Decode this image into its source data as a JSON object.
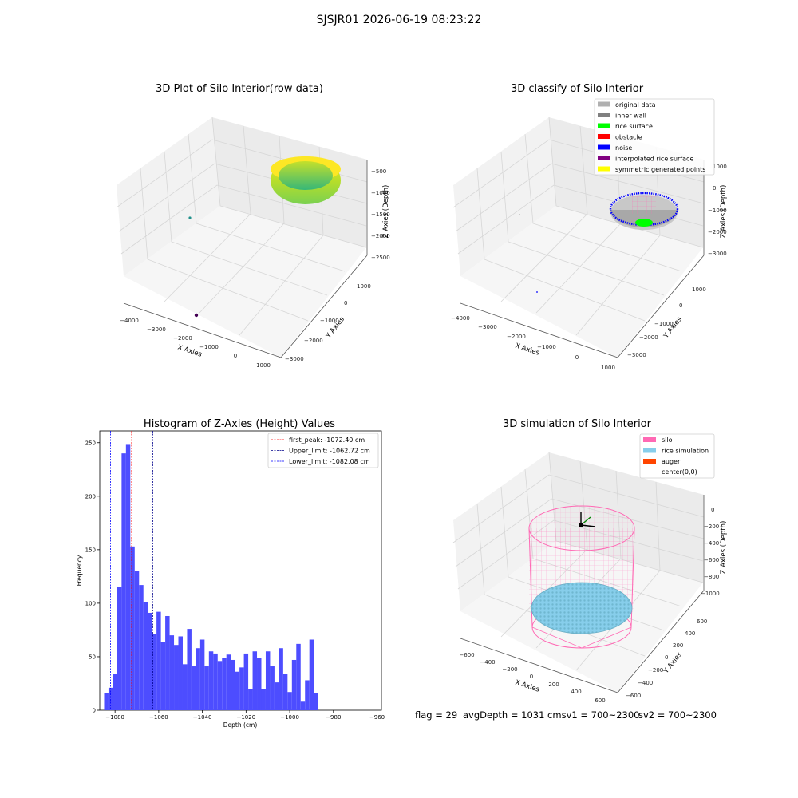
{
  "suptitle": "SJSJR01 2026-06-19 08:23:22",
  "footer": {
    "flag": "flag = 29",
    "avg": "avgDepth = 1031 cmsv1 = 700~2300",
    "sv2": "sv2 = 700~2300"
  },
  "chart_data": [
    {
      "type": "scatter",
      "title": "3D Plot of Silo Interior(row data)",
      "xlabel": "X Axies",
      "ylabel": "Y Axies",
      "zlabel": "Z Axies (Depth)",
      "x_ticks": [
        "−4000",
        "−3000",
        "−2000",
        "−1000",
        "0",
        "1000"
      ],
      "y_ticks": [
        "1000",
        "0",
        "−1000",
        "−2000",
        "−3000"
      ],
      "z_ticks": [
        "−500",
        "−1000",
        "−1500",
        "−2000",
        "−2500"
      ],
      "colormap": [
        "#fde725",
        "#7ad151",
        "#22a884",
        "#2a788e",
        "#440154"
      ]
    },
    {
      "type": "scatter",
      "title": "3D classify of Silo Interior",
      "xlabel": "X Axies",
      "ylabel": "Y Axies",
      "zlabel": "Z Axies (Depth)",
      "x_ticks": [
        "−4000",
        "−3000",
        "−2000",
        "−1000",
        "0",
        "1000"
      ],
      "y_ticks": [
        "1000",
        "0",
        "−1000",
        "−2000",
        "−3000"
      ],
      "z_ticks": [
        "1000",
        "0",
        "−1000",
        "−2000",
        "−3000"
      ],
      "legend": [
        {
          "label": "original data",
          "color": "#b0b0b0"
        },
        {
          "label": "inner wall",
          "color": "#808080"
        },
        {
          "label": "rice surface",
          "color": "#00ff00"
        },
        {
          "label": "obstacle",
          "color": "#ff0000"
        },
        {
          "label": "noise",
          "color": "#0000ff"
        },
        {
          "label": "interpolated rice surface",
          "color": "#800080"
        },
        {
          "label": "symmetric generated points",
          "color": "#ffff00"
        }
      ],
      "legend_loc": "upper right"
    },
    {
      "type": "bar",
      "title": "Histogram of Z-Axies (Height) Values",
      "xlabel": "Depth (cm)",
      "ylabel": "Frequency",
      "xlim": [
        -1087,
        -958
      ],
      "ylim": [
        0,
        261
      ],
      "x_ticks": [
        -1080,
        -1060,
        -1040,
        -1020,
        -1000,
        -980,
        -960
      ],
      "y_ticks": [
        0,
        50,
        100,
        150,
        200,
        250
      ],
      "bin_start": -1085,
      "bin_width": 2.0,
      "values": [
        16,
        21,
        34,
        115,
        240,
        248,
        153,
        130,
        117,
        101,
        91,
        71,
        92,
        64,
        88,
        70,
        61,
        69,
        43,
        76,
        41,
        58,
        66,
        41,
        55,
        53,
        46,
        49,
        52,
        47,
        36,
        40,
        53,
        20,
        55,
        49,
        20,
        55,
        41,
        26,
        58,
        34,
        17,
        47,
        62,
        8,
        28,
        66,
        16
      ],
      "bar_color": "#4d4dff",
      "lines": [
        {
          "label": "first_peak: -1072.40 cm",
          "x": -1072.4,
          "color": "#ff0000"
        },
        {
          "label": "Upper_limit: -1062.72 cm",
          "x": -1062.72,
          "color": "#00008b"
        },
        {
          "label": "Lower_limit: -1082.08 cm",
          "x": -1082.08,
          "color": "#0000ff"
        }
      ],
      "legend_loc": "upper right"
    },
    {
      "type": "scatter",
      "title": "3D simulation of Silo Interior",
      "xlabel": "X Axies",
      "ylabel": "Y Axies",
      "zlabel": "Z Axies (Depth)",
      "x_ticks": [
        "−600",
        "−400",
        "−200",
        "0",
        "200",
        "400",
        "600"
      ],
      "y_ticks": [
        "600",
        "400",
        "200",
        "0",
        "−200",
        "−400",
        "−600"
      ],
      "z_ticks": [
        "0",
        "−200",
        "−400",
        "−600",
        "−800",
        "−1000"
      ],
      "legend": [
        {
          "label": "silo",
          "color": "#ff69b4"
        },
        {
          "label": "rice simulation",
          "color": "#87ceeb"
        },
        {
          "label": "auger",
          "color": "#ff4500"
        },
        {
          "label": "center(0,0)",
          "color": ""
        }
      ],
      "legend_loc": "upper right"
    }
  ]
}
